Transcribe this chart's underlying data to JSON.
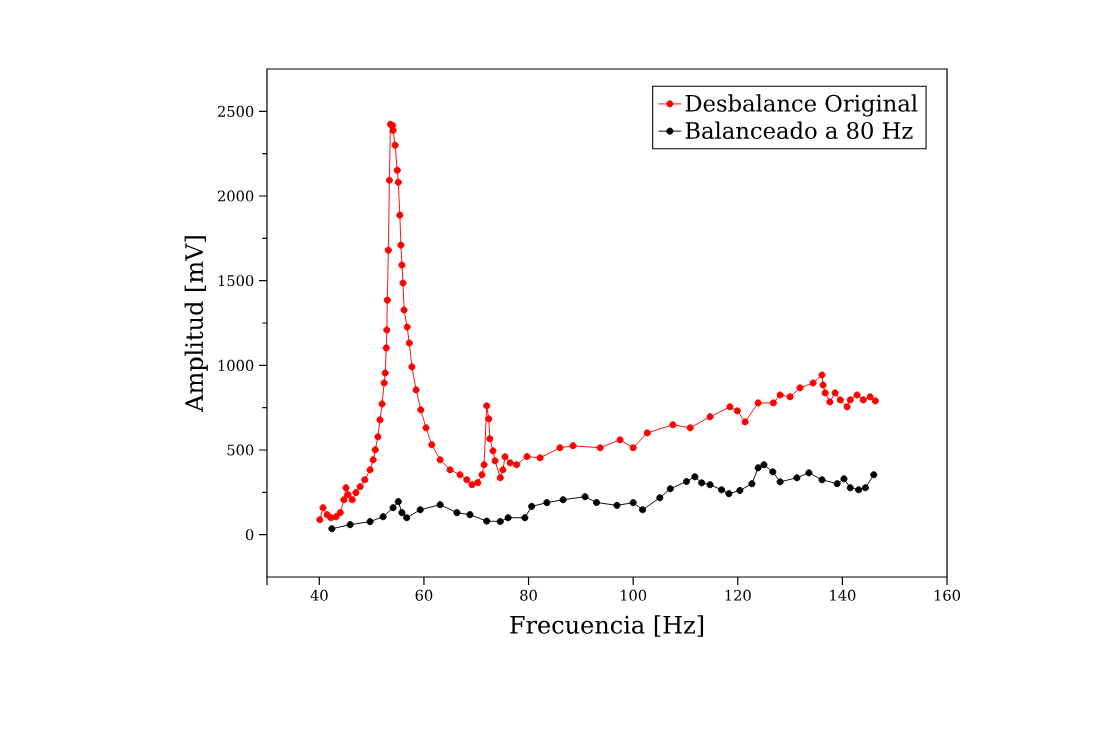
{
  "chart_data": {
    "type": "line",
    "xlabel": "Frecuencia [Hz]",
    "ylabel": "Amplitud [mV]",
    "xlim": [
      30,
      160
    ],
    "ylim": [
      -250,
      2750
    ],
    "xticks": [
      {
        "value": 30,
        "label": null
      },
      40,
      60,
      80,
      100,
      120,
      140,
      160
    ],
    "yticks": [
      0,
      500,
      1000,
      1500,
      2000,
      2500
    ],
    "legend": "top right",
    "marker": "circle",
    "line_style": "solid",
    "series": [
      {
        "name": "Desbalance Original",
        "color": "#ff0000",
        "x": [
          40.1,
          40.7,
          41.5,
          42.2,
          43.2,
          44.0,
          44.7,
          45.1,
          45.5,
          46.3,
          47.0,
          47.8,
          48.7,
          49.7,
          50.3,
          50.7,
          51.2,
          51.6,
          52.0,
          52.4,
          52.6,
          52.8,
          52.9,
          53.0,
          53.2,
          53.4,
          53.6,
          54.0,
          54.1,
          54.5,
          54.9,
          55.1,
          55.4,
          55.6,
          55.8,
          56.0,
          56.2,
          56.8,
          57.2,
          57.7,
          58.5,
          59.4,
          60.4,
          61.5,
          63.1,
          65.0,
          66.9,
          68.2,
          69.2,
          70.3,
          71.1,
          71.5,
          72.0,
          72.4,
          72.6,
          73.2,
          73.6,
          74.6,
          75.1,
          75.5,
          76.5,
          77.7,
          79.7,
          82.2,
          86.0,
          88.5,
          93.7,
          97.5,
          100.0,
          102.7,
          107.6,
          110.9,
          114.7,
          118.5,
          119.9,
          121.4,
          123.9,
          126.8,
          128.1,
          130.0,
          131.9,
          134.4,
          136.1,
          136.3,
          136.7,
          137.6,
          138.6,
          139.6,
          140.9,
          141.5,
          142.8,
          144.0,
          145.3,
          146.3
        ],
        "values": [
          88,
          159,
          118,
          100,
          106,
          130,
          206,
          277,
          236,
          206,
          248,
          283,
          324,
          383,
          442,
          501,
          578,
          678,
          772,
          896,
          955,
          1103,
          1209,
          1385,
          1680,
          2093,
          2423,
          2417,
          2388,
          2300,
          2152,
          2081,
          1887,
          1710,
          1592,
          1486,
          1327,
          1226,
          1132,
          991,
          855,
          737,
          631,
          531,
          442,
          383,
          354,
          324,
          295,
          307,
          354,
          413,
          761,
          684,
          566,
          495,
          436,
          336,
          383,
          460,
          424,
          413,
          461,
          454,
          513,
          525,
          513,
          560,
          513,
          601,
          649,
          631,
          696,
          755,
          731,
          666,
          778,
          778,
          825,
          814,
          867,
          896,
          943,
          884,
          837,
          784,
          837,
          796,
          755,
          796,
          825,
          796,
          814,
          790
        ]
      },
      {
        "name": "Balanceado a 80 Hz",
        "color": "#000000",
        "x": [
          42.4,
          45.9,
          49.7,
          52.2,
          54.1,
          55.1,
          55.8,
          56.7,
          59.3,
          63.1,
          66.3,
          68.8,
          72.0,
          74.6,
          76.1,
          79.3,
          80.6,
          83.5,
          86.6,
          90.8,
          93.0,
          96.9,
          100.0,
          101.8,
          105.1,
          107.1,
          110.2,
          111.8,
          113.1,
          114.7,
          116.9,
          118.3,
          120.4,
          122.7,
          123.9,
          125.0,
          126.7,
          128.1,
          131.3,
          133.6,
          136.1,
          139.0,
          140.3,
          141.5,
          143.1,
          144.4,
          146.0
        ],
        "values": [
          35,
          59,
          77,
          106,
          159,
          195,
          130,
          100,
          147,
          177,
          130,
          118,
          80,
          78,
          100,
          100,
          167,
          189,
          206,
          224,
          190,
          173,
          189,
          147,
          218,
          271,
          314,
          342,
          306,
          295,
          265,
          242,
          261,
          301,
          395,
          413,
          371,
          312,
          336,
          365,
          324,
          301,
          330,
          277,
          265,
          277,
          354
        ]
      }
    ]
  }
}
